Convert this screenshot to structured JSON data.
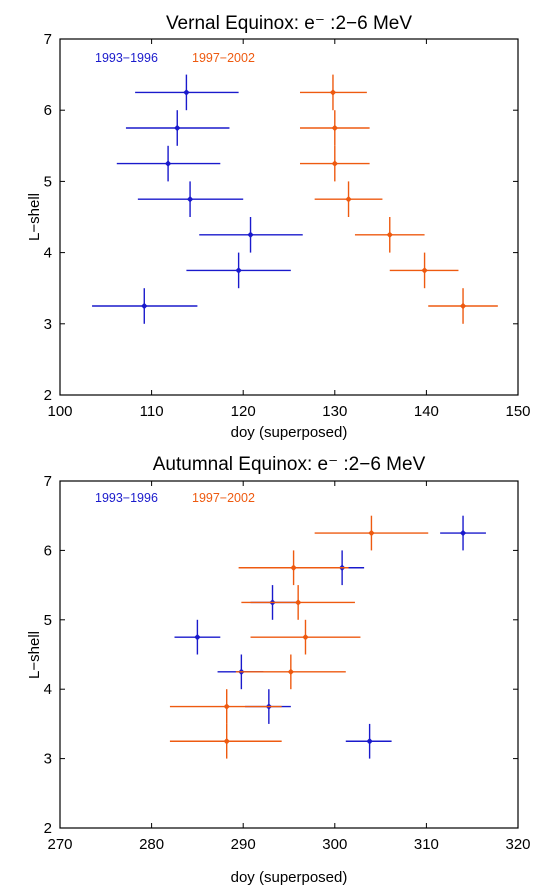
{
  "chart_data": [
    {
      "type": "scatter",
      "title": "Vernal Equinox: e⁻ :2−6 MeV",
      "xlabel": "doy (superposed)",
      "ylabel": "L−shell",
      "xlim": [
        100,
        150
      ],
      "ylim": [
        2,
        7
      ],
      "xticks": [
        "100",
        "110",
        "120",
        "130",
        "140",
        "150"
      ],
      "yticks": [
        "2",
        "3",
        "4",
        "5",
        "6",
        "7"
      ],
      "grid": false,
      "legend": {
        "position": "top-left",
        "entries": [
          "1993−1996",
          "1997−2002"
        ]
      },
      "series": [
        {
          "name": "1993−1996",
          "color": "#1a1acc",
          "points": [
            {
              "x": 113.8,
              "y": 6.25,
              "xlo": 108.2,
              "xhi": 119.5,
              "ylo": 6.0,
              "yhi": 6.5
            },
            {
              "x": 112.8,
              "y": 5.75,
              "xlo": 107.2,
              "xhi": 118.5,
              "ylo": 5.5,
              "yhi": 6.0
            },
            {
              "x": 111.8,
              "y": 5.25,
              "xlo": 106.2,
              "xhi": 117.5,
              "ylo": 5.0,
              "yhi": 5.5
            },
            {
              "x": 114.2,
              "y": 4.75,
              "xlo": 108.5,
              "xhi": 120.0,
              "ylo": 4.5,
              "yhi": 5.0
            },
            {
              "x": 120.8,
              "y": 4.25,
              "xlo": 115.2,
              "xhi": 126.5,
              "ylo": 4.0,
              "yhi": 4.5
            },
            {
              "x": 119.5,
              "y": 3.75,
              "xlo": 113.8,
              "xhi": 125.2,
              "ylo": 3.5,
              "yhi": 4.0
            },
            {
              "x": 109.2,
              "y": 3.25,
              "xlo": 103.5,
              "xhi": 115.0,
              "ylo": 3.0,
              "yhi": 3.5
            }
          ]
        },
        {
          "name": "1997−2002",
          "color": "#ee5a10",
          "points": [
            {
              "x": 129.8,
              "y": 6.25,
              "xlo": 126.2,
              "xhi": 133.5,
              "ylo": 6.0,
              "yhi": 6.5
            },
            {
              "x": 130.0,
              "y": 5.75,
              "xlo": 126.2,
              "xhi": 133.8,
              "ylo": 5.5,
              "yhi": 6.0
            },
            {
              "x": 130.0,
              "y": 5.25,
              "xlo": 126.2,
              "xhi": 133.8,
              "ylo": 5.0,
              "yhi": 5.5
            },
            {
              "x": 131.5,
              "y": 4.75,
              "xlo": 127.8,
              "xhi": 135.2,
              "ylo": 4.5,
              "yhi": 5.0
            },
            {
              "x": 136.0,
              "y": 4.25,
              "xlo": 132.2,
              "xhi": 139.8,
              "ylo": 4.0,
              "yhi": 4.5
            },
            {
              "x": 139.8,
              "y": 3.75,
              "xlo": 136.0,
              "xhi": 143.5,
              "ylo": 3.5,
              "yhi": 4.0
            },
            {
              "x": 144.0,
              "y": 3.25,
              "xlo": 140.2,
              "xhi": 147.8,
              "ylo": 3.0,
              "yhi": 3.5
            }
          ]
        }
      ]
    },
    {
      "type": "scatter",
      "title": "Autumnal Equinox: e⁻ :2−6 MeV",
      "xlabel": "doy (superposed)",
      "ylabel": "L−shell",
      "xlim": [
        270,
        320
      ],
      "ylim": [
        2,
        7
      ],
      "xticks": [
        "270",
        "280",
        "290",
        "300",
        "310",
        "320"
      ],
      "yticks": [
        "2",
        "3",
        "4",
        "5",
        "6",
        "7"
      ],
      "grid": false,
      "legend": {
        "position": "top-left",
        "entries": [
          "1993−1996",
          "1997−2002"
        ]
      },
      "series": [
        {
          "name": "1993−1996",
          "color": "#1a1acc",
          "points": [
            {
              "x": 314.0,
              "y": 6.25,
              "xlo": 311.5,
              "xhi": 316.5,
              "ylo": 6.0,
              "yhi": 6.5
            },
            {
              "x": 300.8,
              "y": 5.75,
              "xlo": 298.2,
              "xhi": 303.2,
              "ylo": 5.5,
              "yhi": 6.0
            },
            {
              "x": 293.2,
              "y": 5.25,
              "xlo": 290.8,
              "xhi": 295.8,
              "ylo": 5.0,
              "yhi": 5.5
            },
            {
              "x": 285.0,
              "y": 4.75,
              "xlo": 282.5,
              "xhi": 287.5,
              "ylo": 4.5,
              "yhi": 5.0
            },
            {
              "x": 289.8,
              "y": 4.25,
              "xlo": 287.2,
              "xhi": 292.2,
              "ylo": 4.0,
              "yhi": 4.5
            },
            {
              "x": 292.8,
              "y": 3.75,
              "xlo": 290.2,
              "xhi": 295.2,
              "ylo": 3.5,
              "yhi": 4.0
            },
            {
              "x": 303.8,
              "y": 3.25,
              "xlo": 301.2,
              "xhi": 306.2,
              "ylo": 3.0,
              "yhi": 3.5
            }
          ]
        },
        {
          "name": "1997−2002",
          "color": "#ee5a10",
          "points": [
            {
              "x": 304.0,
              "y": 6.25,
              "xlo": 297.8,
              "xhi": 310.2,
              "ylo": 6.0,
              "yhi": 6.5
            },
            {
              "x": 295.5,
              "y": 5.75,
              "xlo": 289.5,
              "xhi": 301.5,
              "ylo": 5.5,
              "yhi": 6.0
            },
            {
              "x": 296.0,
              "y": 5.25,
              "xlo": 289.8,
              "xhi": 302.2,
              "ylo": 5.0,
              "yhi": 5.5
            },
            {
              "x": 296.8,
              "y": 4.75,
              "xlo": 290.8,
              "xhi": 302.8,
              "ylo": 4.5,
              "yhi": 5.0
            },
            {
              "x": 295.2,
              "y": 4.25,
              "xlo": 289.2,
              "xhi": 301.2,
              "ylo": 4.0,
              "yhi": 4.5
            },
            {
              "x": 288.2,
              "y": 3.75,
              "xlo": 282.0,
              "xhi": 294.2,
              "ylo": 3.5,
              "yhi": 4.0
            },
            {
              "x": 288.2,
              "y": 3.25,
              "xlo": 282.0,
              "xhi": 294.2,
              "ylo": 3.0,
              "yhi": 3.5
            }
          ]
        }
      ]
    }
  ]
}
